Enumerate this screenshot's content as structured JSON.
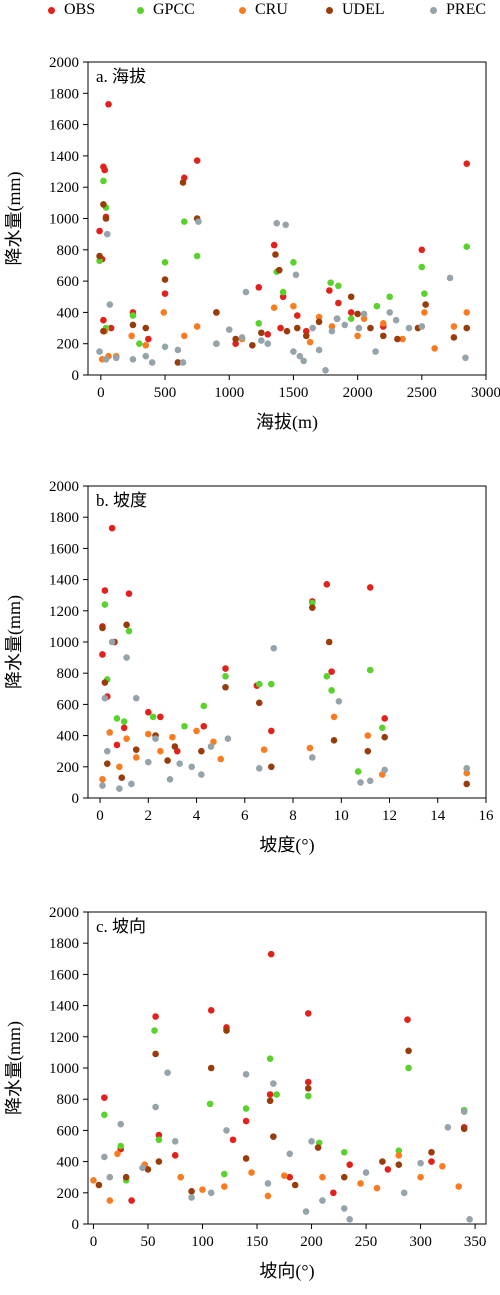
{
  "colors": {
    "OBS": "#e3201b",
    "GPCC": "#5ad22c",
    "CRU": "#fb7b1f",
    "UDEL": "#9a3c0a",
    "PREC": "#95a3ab"
  },
  "legend": {
    "items": [
      {
        "name": "OBS",
        "color": "#e3201b"
      },
      {
        "name": "GPCC",
        "color": "#5ad22c"
      },
      {
        "name": "CRU",
        "color": "#fb7b1f"
      },
      {
        "name": "UDEL",
        "color": "#9a3c0a"
      },
      {
        "name": "PREC",
        "color": "#95a3ab"
      }
    ]
  },
  "chart_data": [
    {
      "type": "scatter",
      "title": "a. 海拔",
      "xlabel": "海拔(m)",
      "ylabel": "降水量(mm)",
      "xlim": [
        -100,
        3000
      ],
      "ylim": [
        0,
        2000
      ],
      "xticks": [
        0,
        500,
        1000,
        1500,
        2000,
        2500,
        3000
      ],
      "yticks": [
        0,
        200,
        400,
        600,
        800,
        1000,
        1200,
        1400,
        1600,
        1800,
        2000
      ],
      "series": [
        {
          "name": "OBS",
          "x": [
            60,
            20,
            30,
            -10,
            10,
            40,
            20,
            250,
            500,
            650,
            750,
            1350,
            1420,
            1230,
            1530,
            1780,
            1850,
            2500,
            2850,
            1400,
            1600,
            900,
            80,
            370,
            1050,
            1300,
            2200,
            1950
          ],
          "y": [
            1730,
            1330,
            1310,
            920,
            740,
            1010,
            350,
            400,
            520,
            1260,
            1370,
            830,
            500,
            560,
            380,
            540,
            460,
            800,
            1350,
            300,
            280,
            400,
            300,
            230,
            200,
            260,
            310,
            400
          ]
        },
        {
          "name": "GPCC",
          "x": [
            20,
            40,
            -10,
            500,
            650,
            750,
            1370,
            1500,
            1790,
            1850,
            2150,
            2250,
            2500,
            2850,
            1420,
            250,
            40,
            300,
            1230,
            1950,
            2520
          ],
          "y": [
            1240,
            1070,
            730,
            720,
            980,
            760,
            660,
            720,
            590,
            570,
            440,
            500,
            690,
            820,
            530,
            380,
            300,
            200,
            330,
            360,
            520
          ]
        },
        {
          "name": "CRU",
          "x": [
            10,
            30,
            60,
            240,
            490,
            650,
            750,
            1350,
            1500,
            1700,
            1800,
            2050,
            2200,
            2350,
            2520,
            2750,
            2850,
            900,
            1100,
            1630,
            2600,
            120,
            350,
            2000
          ],
          "y": [
            100,
            280,
            120,
            250,
            400,
            250,
            310,
            430,
            440,
            370,
            310,
            360,
            330,
            230,
            400,
            310,
            400,
            200,
            230,
            210,
            170,
            120,
            190,
            250
          ]
        },
        {
          "name": "UDEL",
          "x": [
            20,
            40,
            -10,
            20,
            500,
            640,
            750,
            900,
            1050,
            1360,
            1390,
            1530,
            1700,
            1840,
            1950,
            2100,
            2200,
            2310,
            2470,
            2530,
            2750,
            2850,
            250,
            350,
            1180,
            1600,
            600,
            1250,
            1450,
            2000
          ],
          "y": [
            1090,
            1000,
            760,
            280,
            610,
            1230,
            1000,
            400,
            230,
            770,
            670,
            300,
            340,
            360,
            500,
            300,
            250,
            230,
            300,
            450,
            240,
            300,
            320,
            300,
            190,
            250,
            80,
            270,
            280,
            390
          ]
        },
        {
          "name": "PREC",
          "x": [
            50,
            70,
            -10,
            40,
            500,
            640,
            760,
            900,
            1130,
            1370,
            1440,
            1520,
            1700,
            1840,
            2010,
            2140,
            2250,
            2400,
            2500,
            2720,
            2840,
            250,
            350,
            1250,
            1580,
            1750,
            600,
            1300,
            2300,
            1000,
            120,
            400,
            1650,
            2050,
            1500,
            1550,
            1800,
            1100,
            1900
          ],
          "y": [
            900,
            450,
            150,
            100,
            180,
            80,
            980,
            200,
            530,
            970,
            960,
            640,
            160,
            360,
            300,
            150,
            400,
            300,
            310,
            620,
            110,
            100,
            120,
            220,
            90,
            30,
            160,
            200,
            350,
            290,
            110,
            80,
            300,
            390,
            150,
            120,
            280,
            240,
            320
          ]
        }
      ]
    },
    {
      "type": "scatter",
      "title": "b. 坡度",
      "xlabel": "坡度(°)",
      "ylabel": "降水量(mm)",
      "xlim": [
        -0.5,
        16
      ],
      "ylim": [
        0,
        2000
      ],
      "xticks": [
        0,
        2,
        4,
        6,
        8,
        10,
        12,
        14,
        16
      ],
      "yticks": [
        0,
        200,
        400,
        600,
        800,
        1000,
        1200,
        1400,
        1600,
        1800,
        2000
      ],
      "series": [
        {
          "name": "OBS",
          "x": [
            0.5,
            0.2,
            1.2,
            0.1,
            0.1,
            2.0,
            2.5,
            4.3,
            5.2,
            6.5,
            8.8,
            9.4,
            9.6,
            11.2,
            11.8,
            0.3,
            1.0,
            3.2,
            7.1,
            0.7
          ],
          "y": [
            1730,
            1330,
            1310,
            1100,
            920,
            550,
            520,
            460,
            830,
            720,
            1260,
            1370,
            810,
            1350,
            510,
            650,
            450,
            300,
            430,
            340
          ]
        },
        {
          "name": "GPCC",
          "x": [
            0.2,
            1.2,
            0.3,
            0.7,
            2.2,
            4.3,
            5.2,
            6.6,
            7.1,
            8.8,
            9.4,
            9.6,
            11.2,
            11.7,
            1.0,
            3.5,
            15.2,
            10.7
          ],
          "y": [
            1240,
            1070,
            760,
            510,
            520,
            590,
            780,
            730,
            730,
            1250,
            780,
            690,
            820,
            450,
            490,
            460,
            190,
            170
          ]
        },
        {
          "name": "CRU",
          "x": [
            0.1,
            0.4,
            1.1,
            2.0,
            3.0,
            4.0,
            5.0,
            6.8,
            8.7,
            9.7,
            11.1,
            11.7,
            15.2,
            0.8,
            2.5,
            4.7,
            1.5
          ],
          "y": [
            120,
            420,
            380,
            410,
            390,
            430,
            250,
            310,
            320,
            520,
            400,
            150,
            160,
            200,
            300,
            360,
            260
          ]
        },
        {
          "name": "UDEL",
          "x": [
            0.1,
            0.2,
            0.6,
            1.1,
            2.3,
            3.1,
            4.2,
            5.2,
            6.6,
            7.1,
            8.8,
            9.5,
            9.7,
            11.1,
            11.8,
            15.2,
            0.3,
            1.5,
            2.8,
            0.9
          ],
          "y": [
            1090,
            740,
            1000,
            1110,
            400,
            330,
            300,
            710,
            610,
            200,
            1220,
            1000,
            370,
            300,
            390,
            90,
            220,
            310,
            240,
            130
          ]
        },
        {
          "name": "PREC",
          "x": [
            0.5,
            1.1,
            0.2,
            1.5,
            2.0,
            3.3,
            4.2,
            5.3,
            6.6,
            7.2,
            8.8,
            9.9,
            10.8,
            11.2,
            11.8,
            15.2,
            0.1,
            0.8,
            1.3,
            2.9,
            3.8,
            4.6,
            0.3,
            2.3
          ],
          "y": [
            1000,
            900,
            640,
            640,
            230,
            220,
            150,
            380,
            190,
            960,
            260,
            620,
            100,
            110,
            180,
            190,
            80,
            60,
            90,
            120,
            200,
            330,
            300,
            380
          ]
        }
      ]
    },
    {
      "type": "scatter",
      "title": "c. 坡向",
      "xlabel": "坡向(°)",
      "ylabel": "降水量(mm)",
      "xlim": [
        -5,
        360
      ],
      "ylim": [
        0,
        2000
      ],
      "xticks": [
        0,
        50,
        100,
        150,
        200,
        250,
        300,
        350
      ],
      "yticks": [
        0,
        200,
        400,
        600,
        800,
        1000,
        1200,
        1400,
        1600,
        1800,
        2000
      ],
      "series": [
        {
          "name": "OBS",
          "x": [
            163,
            57,
            108,
            122,
            197,
            288,
            10,
            162,
            197,
            140,
            60,
            128,
            25,
            75,
            235,
            270,
            310,
            340,
            180,
            220,
            35
          ],
          "y": [
            1730,
            1330,
            1370,
            1260,
            1350,
            1310,
            810,
            830,
            910,
            660,
            570,
            540,
            480,
            440,
            380,
            350,
            400,
            620,
            300,
            200,
            150
          ]
        },
        {
          "name": "GPCC",
          "x": [
            56,
            107,
            162,
            197,
            289,
            10,
            140,
            168,
            207,
            340,
            25,
            60,
            230,
            280,
            120,
            80,
            30
          ],
          "y": [
            1240,
            770,
            1060,
            820,
            1000,
            700,
            740,
            830,
            520,
            730,
            500,
            540,
            460,
            470,
            320,
            300,
            280
          ]
        },
        {
          "name": "CRU",
          "x": [
            0,
            22,
            47,
            80,
            120,
            145,
            175,
            210,
            245,
            280,
            300,
            320,
            335,
            160,
            15,
            100,
            260
          ],
          "y": [
            280,
            450,
            380,
            300,
            240,
            330,
            310,
            300,
            260,
            440,
            300,
            370,
            240,
            180,
            150,
            220,
            230
          ]
        },
        {
          "name": "UDEL",
          "x": [
            57,
            108,
            122,
            162,
            197,
            289,
            5,
            30,
            60,
            140,
            165,
            206,
            340,
            265,
            310,
            280,
            90,
            230,
            50,
            185
          ],
          "y": [
            1090,
            1000,
            1240,
            790,
            870,
            1110,
            250,
            300,
            400,
            420,
            560,
            490,
            610,
            400,
            460,
            380,
            210,
            300,
            350,
            250
          ]
        },
        {
          "name": "PREC",
          "x": [
            68,
            57,
            165,
            140,
            108,
            25,
            340,
            10,
            122,
            200,
            235,
            300,
            325,
            345,
            285,
            180,
            90,
            160,
            45,
            230,
            250,
            210,
            15,
            75,
            195
          ],
          "y": [
            970,
            750,
            900,
            960,
            200,
            640,
            720,
            430,
            600,
            530,
            30,
            390,
            620,
            30,
            200,
            450,
            170,
            260,
            360,
            100,
            330,
            150,
            300,
            530,
            80
          ]
        }
      ]
    }
  ]
}
